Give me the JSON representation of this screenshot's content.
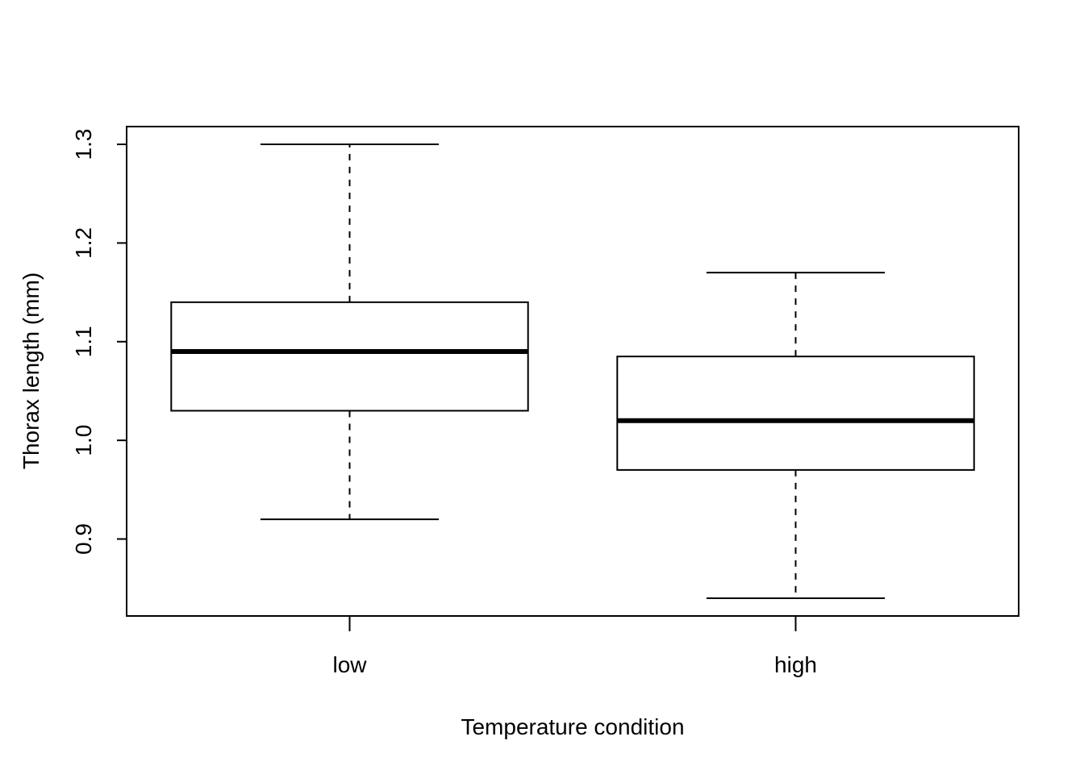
{
  "chart_data": {
    "type": "boxplot",
    "title": "",
    "xlabel": "Temperature condition",
    "ylabel": "Thorax length (mm)",
    "categories": [
      "low",
      "high"
    ],
    "boxes": [
      {
        "category": "low",
        "whisker_low": 0.92,
        "q1": 1.03,
        "median": 1.09,
        "q3": 1.14,
        "whisker_high": 1.3
      },
      {
        "category": "high",
        "whisker_low": 0.84,
        "q1": 0.97,
        "median": 1.02,
        "q3": 1.085,
        "whisker_high": 1.17
      }
    ],
    "ylim": [
      0.822,
      1.318
    ],
    "yticks": [
      0.9,
      1.0,
      1.1,
      1.2,
      1.3
    ],
    "ytick_labels": [
      "0.9",
      "1.0",
      "1.1",
      "1.2",
      "1.3"
    ],
    "grid": false,
    "legend": false,
    "colors": {
      "box_fill": "#ffffff",
      "stroke": "#000000"
    }
  }
}
